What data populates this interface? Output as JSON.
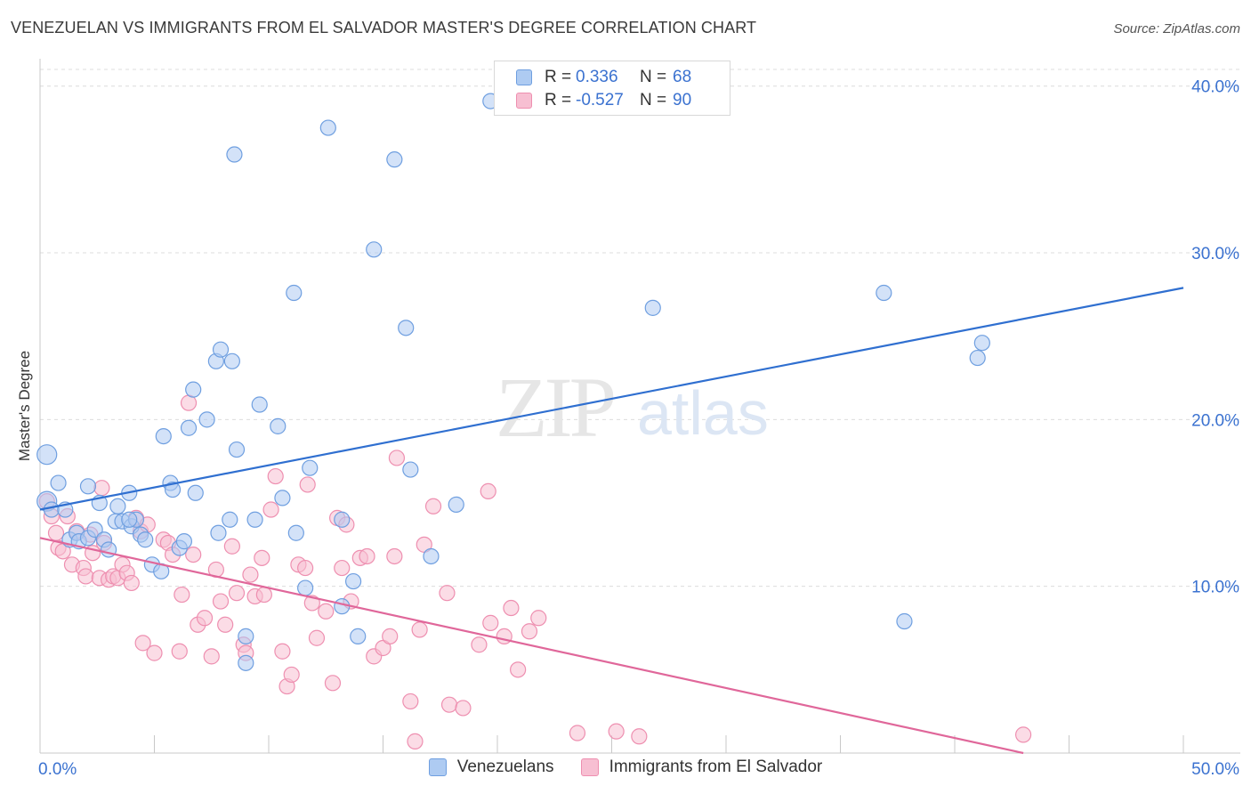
{
  "title": "VENEZUELAN VS IMMIGRANTS FROM EL SALVADOR MASTER'S DEGREE CORRELATION CHART",
  "source": "Source: ZipAtlas.com",
  "watermark": {
    "zip": "ZIP",
    "atlas": "atlas"
  },
  "legend_top": [
    {
      "r_label": "R =",
      "r_value": "0.336",
      "n_label": "N =",
      "n_value": "68"
    },
    {
      "r_label": "R =",
      "r_value": "-0.527",
      "n_label": "N =",
      "n_value": "90"
    }
  ],
  "colors": {
    "blue_fill": "#aecbf2",
    "blue_stroke": "#6f9fe0",
    "blue_line": "#2f6fd0",
    "pink_fill": "#f7bfd2",
    "pink_stroke": "#ee8fb0",
    "pink_line": "#e0679a",
    "tick_label": "#3b72d0",
    "grid": "#dcdcdc"
  },
  "chart_data": {
    "type": "scatter",
    "title": "VENEZUELAN VS IMMIGRANTS FROM EL SALVADOR MASTER'S DEGREE CORRELATION CHART",
    "xlabel": "",
    "ylabel": "Master's Degree",
    "xlim": [
      0,
      50
    ],
    "ylim": [
      0,
      41
    ],
    "x_tick_labels": [
      "0.0%",
      "50.0%"
    ],
    "y_ticks": [
      10,
      20,
      30,
      40
    ],
    "y_tick_labels": [
      "10.0%",
      "20.0%",
      "30.0%",
      "40.0%"
    ],
    "grid": true,
    "legend_position": "bottom",
    "series": [
      {
        "name": "Venezuelans",
        "color": "blue",
        "trend": {
          "x": [
            0,
            50
          ],
          "y": [
            14.6,
            27.9
          ]
        },
        "points": [
          [
            0.3,
            17.9
          ],
          [
            0.3,
            15.1
          ],
          [
            0.5,
            14.6
          ],
          [
            0.8,
            16.2
          ],
          [
            1.1,
            14.6
          ],
          [
            1.3,
            12.8
          ],
          [
            1.6,
            13.2
          ],
          [
            1.7,
            12.7
          ],
          [
            2.1,
            16.0
          ],
          [
            2.1,
            12.9
          ],
          [
            2.4,
            13.4
          ],
          [
            2.6,
            15.0
          ],
          [
            2.8,
            12.8
          ],
          [
            3.0,
            12.2
          ],
          [
            3.3,
            13.9
          ],
          [
            3.4,
            14.8
          ],
          [
            3.6,
            13.9
          ],
          [
            3.9,
            15.6
          ],
          [
            4.0,
            13.6
          ],
          [
            4.2,
            14.0
          ],
          [
            4.4,
            13.1
          ],
          [
            4.6,
            12.8
          ],
          [
            4.9,
            11.3
          ],
          [
            5.3,
            10.9
          ],
          [
            5.7,
            16.2
          ],
          [
            5.8,
            15.8
          ],
          [
            6.1,
            12.3
          ],
          [
            6.3,
            12.7
          ],
          [
            6.5,
            19.5
          ],
          [
            6.7,
            21.8
          ],
          [
            6.8,
            15.6
          ],
          [
            7.3,
            20.0
          ],
          [
            7.7,
            23.5
          ],
          [
            7.8,
            13.2
          ],
          [
            7.9,
            24.2
          ],
          [
            8.3,
            14.0
          ],
          [
            8.4,
            23.5
          ],
          [
            8.5,
            35.9
          ],
          [
            8.6,
            18.2
          ],
          [
            9.0,
            5.4
          ],
          [
            9.0,
            7.0
          ],
          [
            9.4,
            14.0
          ],
          [
            9.6,
            20.9
          ],
          [
            10.4,
            19.6
          ],
          [
            10.6,
            15.3
          ],
          [
            11.1,
            27.6
          ],
          [
            11.2,
            13.2
          ],
          [
            11.6,
            9.9
          ],
          [
            11.8,
            17.1
          ],
          [
            12.6,
            37.5
          ],
          [
            13.2,
            8.8
          ],
          [
            13.7,
            10.3
          ],
          [
            13.9,
            7.0
          ],
          [
            14.6,
            30.2
          ],
          [
            15.5,
            35.6
          ],
          [
            16.0,
            25.5
          ],
          [
            16.2,
            17.0
          ],
          [
            17.1,
            11.8
          ],
          [
            18.2,
            14.9
          ],
          [
            19.7,
            39.1
          ],
          [
            5.4,
            19.0
          ],
          [
            26.8,
            26.7
          ],
          [
            36.9,
            27.6
          ],
          [
            37.8,
            7.9
          ],
          [
            41.0,
            23.7
          ],
          [
            41.2,
            24.6
          ],
          [
            13.2,
            14.0
          ],
          [
            3.9,
            14.0
          ]
        ]
      },
      {
        "name": "Immigrants from El Salvador",
        "color": "pink",
        "trend": {
          "x": [
            0,
            43.0
          ],
          "y": [
            12.9,
            0
          ]
        },
        "points": [
          [
            0.3,
            15.1
          ],
          [
            0.5,
            14.2
          ],
          [
            0.7,
            13.2
          ],
          [
            0.8,
            12.3
          ],
          [
            1.0,
            12.1
          ],
          [
            1.2,
            14.2
          ],
          [
            1.4,
            11.3
          ],
          [
            1.6,
            13.3
          ],
          [
            1.9,
            11.1
          ],
          [
            2.0,
            10.6
          ],
          [
            2.2,
            13.1
          ],
          [
            2.3,
            12.0
          ],
          [
            2.6,
            10.5
          ],
          [
            2.7,
            15.9
          ],
          [
            2.8,
            12.6
          ],
          [
            3.0,
            10.4
          ],
          [
            3.2,
            10.6
          ],
          [
            3.4,
            10.5
          ],
          [
            3.6,
            11.3
          ],
          [
            3.8,
            10.8
          ],
          [
            4.0,
            10.2
          ],
          [
            4.2,
            14.1
          ],
          [
            4.4,
            13.3
          ],
          [
            4.7,
            13.7
          ],
          [
            4.5,
            6.6
          ],
          [
            5.0,
            6.0
          ],
          [
            5.4,
            12.8
          ],
          [
            5.6,
            12.6
          ],
          [
            5.8,
            11.9
          ],
          [
            6.1,
            6.1
          ],
          [
            6.2,
            9.5
          ],
          [
            6.5,
            21.0
          ],
          [
            6.7,
            11.9
          ],
          [
            6.9,
            7.7
          ],
          [
            7.2,
            8.1
          ],
          [
            7.5,
            5.8
          ],
          [
            7.7,
            11.0
          ],
          [
            7.9,
            9.1
          ],
          [
            8.1,
            7.7
          ],
          [
            8.4,
            12.4
          ],
          [
            8.6,
            9.6
          ],
          [
            8.9,
            6.5
          ],
          [
            9.0,
            6.0
          ],
          [
            9.2,
            10.7
          ],
          [
            9.4,
            9.4
          ],
          [
            9.7,
            11.7
          ],
          [
            9.8,
            9.5
          ],
          [
            10.1,
            14.6
          ],
          [
            10.3,
            16.6
          ],
          [
            10.6,
            6.1
          ],
          [
            10.8,
            4.0
          ],
          [
            11.0,
            4.7
          ],
          [
            11.3,
            11.3
          ],
          [
            11.6,
            11.1
          ],
          [
            11.7,
            16.1
          ],
          [
            11.9,
            9.0
          ],
          [
            12.1,
            6.9
          ],
          [
            12.5,
            8.5
          ],
          [
            12.8,
            4.2
          ],
          [
            13.0,
            14.1
          ],
          [
            13.2,
            11.1
          ],
          [
            13.4,
            13.7
          ],
          [
            13.6,
            9.1
          ],
          [
            14.0,
            11.7
          ],
          [
            14.3,
            11.8
          ],
          [
            14.6,
            5.8
          ],
          [
            15.0,
            6.3
          ],
          [
            15.3,
            7.0
          ],
          [
            15.5,
            11.8
          ],
          [
            15.6,
            17.7
          ],
          [
            16.2,
            3.1
          ],
          [
            16.4,
            0.7
          ],
          [
            16.6,
            7.4
          ],
          [
            16.8,
            12.5
          ],
          [
            17.2,
            14.8
          ],
          [
            17.8,
            9.6
          ],
          [
            17.9,
            2.9
          ],
          [
            18.5,
            2.7
          ],
          [
            19.2,
            6.5
          ],
          [
            19.6,
            15.7
          ],
          [
            19.7,
            7.8
          ],
          [
            20.3,
            7.0
          ],
          [
            20.6,
            8.7
          ],
          [
            20.9,
            5.0
          ],
          [
            21.4,
            7.3
          ],
          [
            21.8,
            8.1
          ],
          [
            23.5,
            1.2
          ],
          [
            25.2,
            1.3
          ],
          [
            26.2,
            1.0
          ],
          [
            43.0,
            1.1
          ]
        ]
      }
    ]
  }
}
